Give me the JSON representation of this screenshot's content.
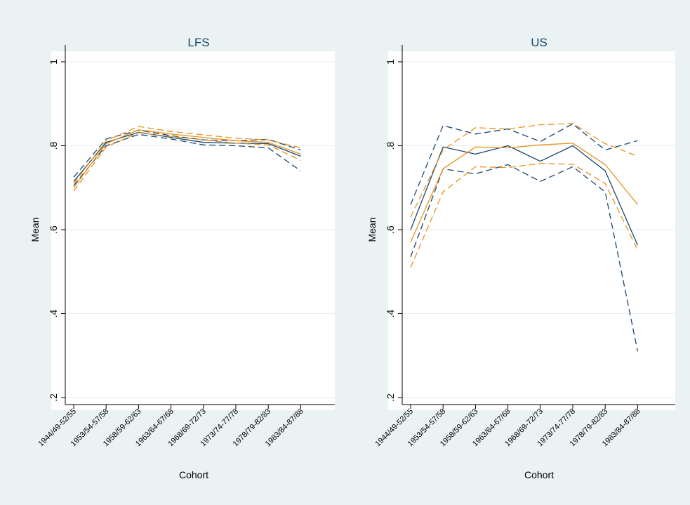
{
  "colors": {
    "background": "#eaf2f3",
    "plot_background": "#ffffff",
    "navy": "#1a476f",
    "orange": "#e8931e",
    "grid": "#e6eeef"
  },
  "chart_data": [
    {
      "type": "line",
      "title": "LFS",
      "xlabel": "Cohort",
      "ylabel": "Mean",
      "ylim": [
        0.2,
        1.0
      ],
      "yticks": [
        ".2",
        ".4",
        ".6",
        ".8",
        "1"
      ],
      "ytick_values": [
        0.2,
        0.4,
        0.6,
        0.8,
        1.0
      ],
      "grid": true,
      "categories": [
        "1944/49-52/55",
        "1953/54-57/58",
        "1958/59-62/63",
        "1963/64-67/68",
        "1968/69-72/73",
        "1973/74-77/78",
        "1978/79-82/83",
        "1983/84-87/88"
      ],
      "series": [
        {
          "color": "#1a476f",
          "dash": "solid",
          "values": [
            0.715,
            0.808,
            0.832,
            0.82,
            0.808,
            0.806,
            0.805,
            0.775
          ]
        },
        {
          "color": "#1a476f",
          "dash": "dashed",
          "values": [
            0.725,
            0.816,
            0.837,
            0.824,
            0.814,
            0.812,
            0.815,
            0.79
          ]
        },
        {
          "color": "#1a476f",
          "dash": "dashed",
          "values": [
            0.705,
            0.8,
            0.827,
            0.816,
            0.802,
            0.8,
            0.795,
            0.74
          ]
        },
        {
          "color": "#e8931e",
          "dash": "solid",
          "values": [
            0.7,
            0.805,
            0.838,
            0.828,
            0.82,
            0.812,
            0.808,
            0.78
          ]
        },
        {
          "color": "#e8931e",
          "dash": "dashed",
          "values": [
            0.71,
            0.812,
            0.846,
            0.834,
            0.826,
            0.818,
            0.814,
            0.795
          ]
        },
        {
          "color": "#e8931e",
          "dash": "dashed",
          "values": [
            0.692,
            0.797,
            0.831,
            0.822,
            0.814,
            0.806,
            0.802,
            0.765
          ]
        }
      ]
    },
    {
      "type": "line",
      "title": "US",
      "xlabel": "Cohort",
      "ylabel": "Mean",
      "ylim": [
        0.2,
        1.0
      ],
      "yticks": [
        ".2",
        ".4",
        ".6",
        ".8",
        "1"
      ],
      "ytick_values": [
        0.2,
        0.4,
        0.6,
        0.8,
        1.0
      ],
      "grid": true,
      "categories": [
        "1944/49-52/55",
        "1953/54-57/58",
        "1958/59-62/63",
        "1963/64-67/68",
        "1968/69-72/73",
        "1973/74-77/78",
        "1978/79-82/83",
        "1983/84-87/88"
      ],
      "series": [
        {
          "color": "#1a476f",
          "dash": "solid",
          "values": [
            0.6,
            0.797,
            0.78,
            0.8,
            0.763,
            0.8,
            0.74,
            0.563
          ]
        },
        {
          "color": "#1a476f",
          "dash": "dashed",
          "values": [
            0.66,
            0.848,
            0.828,
            0.84,
            0.81,
            0.852,
            0.79,
            0.812
          ]
        },
        {
          "color": "#1a476f",
          "dash": "dashed",
          "values": [
            0.535,
            0.745,
            0.733,
            0.755,
            0.715,
            0.75,
            0.69,
            0.31
          ]
        },
        {
          "color": "#e8931e",
          "dash": "solid",
          "values": [
            0.57,
            0.745,
            0.797,
            0.795,
            0.802,
            0.806,
            0.755,
            0.66
          ]
        },
        {
          "color": "#e8931e",
          "dash": "dashed",
          "values": [
            0.63,
            0.79,
            0.843,
            0.84,
            0.85,
            0.853,
            0.805,
            0.775
          ]
        },
        {
          "color": "#e8931e",
          "dash": "dashed",
          "values": [
            0.51,
            0.69,
            0.75,
            0.748,
            0.758,
            0.756,
            0.71,
            0.552
          ]
        }
      ]
    }
  ]
}
